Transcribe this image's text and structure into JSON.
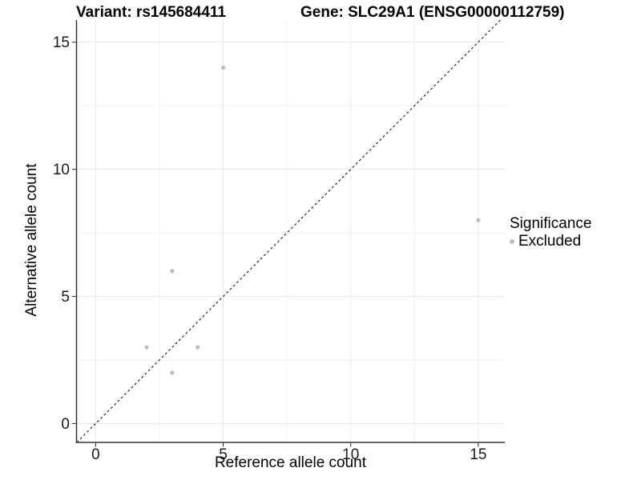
{
  "header": {
    "variant_title": "Variant: rs145684411",
    "gene_title": "Gene: SLC29A1 (ENSG00000112759)"
  },
  "chart_data": {
    "type": "scatter",
    "titles": {
      "variant": "Variant: rs145684411",
      "gene": "Gene: SLC29A1 (ENSG00000112759)"
    },
    "xlabel": "Reference allele count",
    "ylabel": "Alternative allele count",
    "x_ticks": [
      0,
      5,
      10,
      15
    ],
    "y_ticks": [
      0,
      5,
      10,
      15
    ],
    "x_minor_ticks": [
      2.5,
      7.5,
      12.5
    ],
    "y_minor_ticks": [
      2.5,
      7.5,
      12.5
    ],
    "x_range": [
      -0.75,
      16.04
    ],
    "y_range": [
      -0.74,
      15.87
    ],
    "grid": true,
    "legend_position": "right",
    "series": [
      {
        "name": "Excluded",
        "color": "#bdbdbd",
        "points": [
          [
            5,
            14
          ],
          [
            15,
            8
          ],
          [
            3,
            6
          ],
          [
            2,
            3
          ],
          [
            4,
            3
          ],
          [
            3,
            2
          ]
        ]
      }
    ],
    "reference_line": {
      "type": "identity",
      "slope": 1,
      "intercept": 0,
      "style": "dashed",
      "color": "#1a1a1a"
    },
    "legend": {
      "title": "Significance",
      "items": [
        {
          "label": "Excluded",
          "color": "#bdbdbd"
        }
      ]
    }
  },
  "colors": {
    "axis_line": "#333333",
    "major_grid": "#e7e7e7",
    "minor_grid": "#f2f2f2",
    "tick_label": "#1a1a1a",
    "background": "#ffffff"
  }
}
